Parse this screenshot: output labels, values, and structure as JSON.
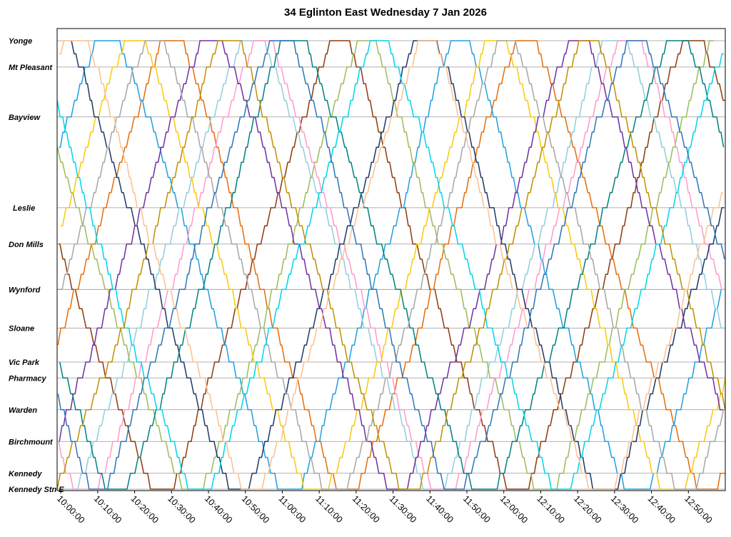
{
  "chart_data": {
    "type": "line",
    "title": "34 Eglinton East Wednesday 7 Jan 2026",
    "xlabel": "",
    "ylabel": "",
    "x_range": [
      "09:59:00",
      "13:00:00"
    ],
    "x_ticks": [
      "10:00:00",
      "10:10:00",
      "10:20:00",
      "10:30:00",
      "10:40:00",
      "10:50:00",
      "11:00:00",
      "11:10:00",
      "11:20:00",
      "11:30:00",
      "11:40:00",
      "11:50:00",
      "12:00:00",
      "12:10:00",
      "12:20:00",
      "12:30:00",
      "12:40:00",
      "12:50:00"
    ],
    "stops": [
      {
        "name": "Yonge",
        "km": 0.0
      },
      {
        "name": "Mt Pleasant",
        "km": 0.58
      },
      {
        "name": "Bayview",
        "km": 1.68
      },
      {
        "name": "Leslie",
        "km": 3.68
      },
      {
        "name": "Don Mills",
        "km": 4.48
      },
      {
        "name": "Wynford",
        "km": 5.48
      },
      {
        "name": "Sloane",
        "km": 6.33
      },
      {
        "name": "Vic Park",
        "km": 7.08
      },
      {
        "name": "Pharmacy",
        "km": 7.43
      },
      {
        "name": "Warden",
        "km": 8.13
      },
      {
        "name": "Birchmount",
        "km": 8.83
      },
      {
        "name": "Kennedy",
        "km": 9.53
      },
      {
        "name": "Kennedy Stn E",
        "km": 9.88
      }
    ],
    "grid": true,
    "legend": "none",
    "series": [
      {
        "color": "#8b3a0e",
        "shift": 0,
        "phase": 0.8
      },
      {
        "color": "#e46c0a",
        "shift": 0,
        "phase": 0.35
      },
      {
        "color": "#1f9fe0",
        "shift": 0,
        "phase": 0.15
      },
      {
        "color": "#92cddc",
        "shift": 0,
        "phase": 0.55
      },
      {
        "color": "#9bbb59",
        "shift": 0,
        "phase": 0.9
      },
      {
        "color": "#ff99cc",
        "shift": 0,
        "phase": 0.6
      },
      {
        "color": "#f9c80e",
        "shift": 0,
        "phase": 0.25
      },
      {
        "color": "#1f3864",
        "shift": 0,
        "phase": 0.05
      },
      {
        "color": "#7030a0",
        "shift": 0,
        "phase": 0.45
      },
      {
        "color": "#008080",
        "shift": 0,
        "phase": 0.7
      },
      {
        "color": "#a6a6a6",
        "shift": 0,
        "phase": 0.3
      },
      {
        "color": "#00d4e8",
        "shift": 0,
        "phase": 0.95
      },
      {
        "color": "#bf8f00",
        "shift": 0,
        "phase": 0.5
      },
      {
        "color": "#fac090",
        "shift": 0,
        "phase": 0.1
      },
      {
        "color": "#2e75b6",
        "shift": 0,
        "phase": 0.65
      }
    ],
    "trip_minutes_one_way": 45,
    "layover_minutes": 4,
    "headway_minutes": 6.5
  }
}
